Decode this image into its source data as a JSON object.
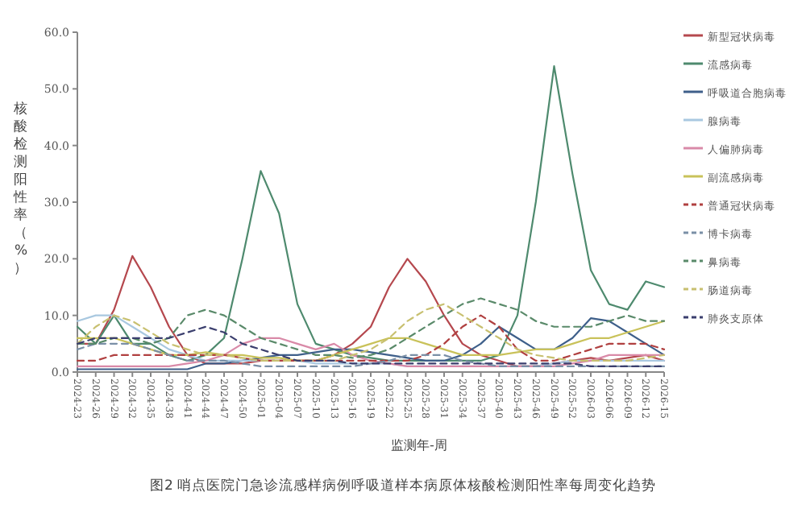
{
  "chart_data": {
    "type": "line",
    "ylabel": "核酸检测阳性率（%）",
    "xlabel": "监测年-周",
    "legend": "right",
    "grid": false,
    "annotations": [
      "图2 哨点医院门急诊流感样病例呼吸道样本病原体核酸检测阳性率每周变化趋势"
    ],
    "x": [
      "2024-06-05",
      "2024-06-26",
      "2024-07-17",
      "2024-08-07",
      "2024-08-28",
      "2024-09-18",
      "2024-10-09",
      "2024-10-30",
      "2024-11-20",
      "2024-12-11",
      "2025-01-01",
      "2025-01-22",
      "2025-02-12",
      "2025-03-05",
      "2025-03-26",
      "2025-04-16",
      "2025-05-07",
      "2025-05-28",
      "2025-06-18",
      "2025-07-09",
      "2025-07-30",
      "2025-08-20",
      "2025-09-10",
      "2025-10-01",
      "2025-10-22",
      "2025-11-12",
      "2025-12-03",
      "2025-12-24",
      "2026-01-14",
      "2026-02-04",
      "2026-02-25",
      "2026-03-18",
      "2026-04-08"
    ],
    "xlim": [
      "2024-06-05",
      "2026-04-08"
    ],
    "xticks": [
      {
        "value": "2024-06-05",
        "label": "2024-23"
      },
      {
        "value": "2024-06-26",
        "label": "2024-26"
      },
      {
        "value": "2024-07-17",
        "label": "2024-29"
      },
      {
        "value": "2024-08-07",
        "label": "2024-32"
      },
      {
        "value": "2024-08-28",
        "label": "2024-35"
      },
      {
        "value": "2024-09-18",
        "label": "2024-38"
      },
      {
        "value": "2024-10-09",
        "label": "2024-41"
      },
      {
        "value": "2024-10-30",
        "label": "2024-44"
      },
      {
        "value": "2024-11-20",
        "label": "2024-47"
      },
      {
        "value": "2024-12-11",
        "label": "2024-50"
      },
      {
        "value": "2025-01-01",
        "label": "2025-01"
      },
      {
        "value": "2025-01-22",
        "label": "2025-04"
      },
      {
        "value": "2025-02-12",
        "label": "2025-07"
      },
      {
        "value": "2025-03-05",
        "label": "2025-10"
      },
      {
        "value": "2025-03-26",
        "label": "2025-13"
      },
      {
        "value": "2025-04-16",
        "label": "2025-16"
      },
      {
        "value": "2025-05-07",
        "label": "2025-19"
      },
      {
        "value": "2025-05-28",
        "label": "2025-22"
      },
      {
        "value": "2025-06-18",
        "label": "2025-25"
      },
      {
        "value": "2025-07-09",
        "label": "2025-28"
      },
      {
        "value": "2025-07-30",
        "label": "2025-31"
      },
      {
        "value": "2025-08-20",
        "label": "2025-34"
      },
      {
        "value": "2025-09-10",
        "label": "2025-37"
      },
      {
        "value": "2025-10-01",
        "label": "2025-40"
      },
      {
        "value": "2025-10-22",
        "label": "2025-43"
      },
      {
        "value": "2025-11-12",
        "label": "2025-46"
      },
      {
        "value": "2025-12-03",
        "label": "2025-49"
      },
      {
        "value": "2025-12-24",
        "label": "2025-52"
      },
      {
        "value": "2026-01-14",
        "label": "2026-03"
      },
      {
        "value": "2026-02-04",
        "label": "2026-06"
      },
      {
        "value": "2026-02-25",
        "label": "2026-09"
      },
      {
        "value": "2026-03-18",
        "label": "2026-12"
      },
      {
        "value": "2026-04-08",
        "label": "2026-15"
      }
    ],
    "ylim": [
      0,
      60
    ],
    "yticks": [
      {
        "value": 0,
        "label": "0.0"
      },
      {
        "value": 10,
        "label": "10.0"
      },
      {
        "value": 20,
        "label": "20.0"
      },
      {
        "value": 30,
        "label": "30.0"
      },
      {
        "value": 40,
        "label": "40.0"
      },
      {
        "value": 50,
        "label": "50.0"
      },
      {
        "value": 60,
        "label": "60.0"
      }
    ],
    "series": [
      {
        "name": "新型冠状病毒",
        "color": "#b5484e",
        "line_style": "solid",
        "values": [
          5,
          5,
          11,
          20.5,
          15,
          8,
          3,
          1.5,
          1.5,
          1.5,
          2,
          2,
          2,
          2,
          3,
          5,
          8,
          15,
          20,
          16,
          10,
          5,
          3,
          2,
          1,
          1,
          1.5,
          2,
          2.5,
          2,
          2.5,
          3,
          2
        ]
      },
      {
        "name": "流感病毒",
        "color": "#4e8a6e",
        "line_style": "solid",
        "values": [
          8,
          5,
          10,
          5,
          5,
          3,
          2,
          3,
          6,
          20,
          35.5,
          28,
          12,
          5,
          4,
          3,
          2.5,
          2,
          2,
          2,
          2,
          2,
          2,
          3,
          10,
          30,
          54,
          35,
          18,
          12,
          11,
          16,
          15
        ]
      },
      {
        "name": "呼吸道合胞病毒",
        "color": "#3e5f8a",
        "line_style": "solid",
        "values": [
          0.5,
          0.5,
          0.5,
          0.5,
          0.5,
          0.5,
          0.5,
          1.5,
          1.5,
          2,
          2.5,
          3,
          3,
          3.5,
          4,
          4,
          3.5,
          3,
          2.5,
          2,
          2,
          3,
          5,
          8,
          6,
          4,
          4,
          6,
          9.5,
          9,
          7,
          5,
          3
        ]
      },
      {
        "name": "腺病毒",
        "color": "#a9c8e0",
        "line_style": "solid",
        "values": [
          9,
          10,
          10,
          8,
          6,
          4,
          3,
          2,
          2,
          2,
          2,
          2,
          2,
          1.5,
          1.5,
          1.5,
          1.5,
          1.5,
          1,
          1,
          1,
          1,
          1,
          1,
          1,
          1,
          1.5,
          2,
          2,
          2,
          2,
          2,
          2
        ]
      },
      {
        "name": "人偏肺病毒",
        "color": "#d98aa8",
        "line_style": "solid",
        "values": [
          1,
          1,
          1,
          1,
          1,
          1,
          1.5,
          2,
          3,
          5,
          6,
          6,
          5,
          4,
          5,
          3,
          2,
          1.5,
          1,
          1,
          1,
          1,
          1,
          1,
          1,
          1,
          1,
          1.5,
          2,
          3,
          3,
          3,
          3
        ]
      },
      {
        "name": "副流感病毒",
        "color": "#c9c25a",
        "line_style": "solid",
        "values": [
          6,
          6,
          6,
          5,
          4,
          3,
          3,
          3.5,
          3,
          3,
          2.5,
          2.5,
          2,
          2,
          3,
          4,
          5,
          6,
          6,
          5,
          4,
          3,
          3,
          3,
          3.5,
          4,
          4,
          5,
          6,
          6,
          7,
          8,
          9
        ]
      },
      {
        "name": "普通冠状病毒",
        "color": "#b04040",
        "line_style": "dashed",
        "values": [
          2,
          2,
          3,
          3,
          3,
          3,
          3,
          3,
          3,
          2.5,
          2,
          2,
          2,
          2,
          2,
          2,
          2,
          2,
          2,
          3,
          5,
          8,
          10,
          8,
          4,
          2,
          2,
          3,
          4,
          5,
          5,
          5,
          4
        ]
      },
      {
        "name": "博卡病毒",
        "color": "#7a8fa6",
        "line_style": "dashed",
        "values": [
          4,
          5,
          5,
          5,
          4,
          3,
          2,
          2,
          2,
          1.5,
          1,
          1,
          1,
          1,
          1,
          1,
          1.5,
          2,
          3,
          3,
          3,
          2,
          1.5,
          1,
          1,
          1,
          1,
          1,
          1,
          1,
          1,
          1,
          1
        ]
      },
      {
        "name": "鼻病毒",
        "color": "#5a8a6a",
        "line_style": "dashed",
        "values": [
          5,
          5,
          6,
          6,
          5,
          6,
          10,
          11,
          10,
          8,
          6,
          5,
          4,
          3,
          3,
          2.5,
          3,
          4,
          6,
          8,
          10,
          12,
          13,
          12,
          11,
          9,
          8,
          8,
          8,
          9,
          10,
          9,
          9
        ]
      },
      {
        "name": "肠道病毒",
        "color": "#c8c070",
        "line_style": "dashed",
        "values": [
          5,
          8,
          10,
          9,
          7,
          5,
          4,
          3,
          3,
          2.5,
          2,
          2,
          2,
          2,
          2,
          3,
          4,
          6,
          9,
          11,
          12,
          10,
          8,
          6,
          4,
          3,
          2.5,
          2,
          2,
          2,
          2,
          2.5,
          3
        ]
      },
      {
        "name": "肺炎支原体",
        "color": "#3b3f6e",
        "line_style": "dashed",
        "values": [
          5,
          6,
          6,
          6,
          6,
          6,
          7,
          8,
          7,
          5,
          4,
          3,
          2,
          2,
          2,
          1.5,
          1.5,
          1.5,
          1.5,
          1.5,
          1.5,
          1.5,
          1.5,
          1.5,
          1.5,
          1.5,
          1.5,
          1.5,
          1,
          1,
          1,
          1,
          1
        ]
      }
    ]
  }
}
